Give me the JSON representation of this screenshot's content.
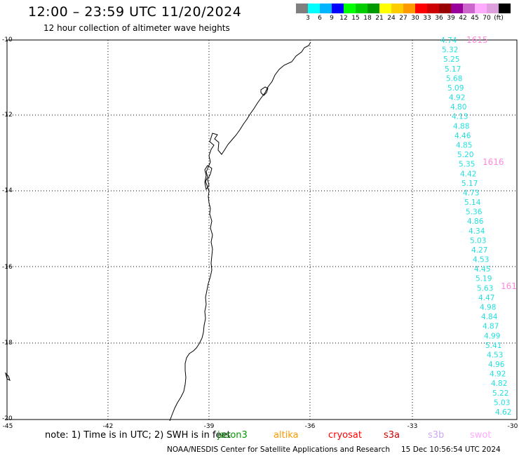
{
  "header": {
    "title": "12:00 – 23:59 UTC 11/20/2024",
    "subtitle": "12 hour collection of altimeter wave heights"
  },
  "color_scale": {
    "colors": [
      "#7f7f7f",
      "#00ffff",
      "#00b4ff",
      "#0000ff",
      "#00ff00",
      "#00cc00",
      "#009900",
      "#ffff00",
      "#ffcc00",
      "#ff9900",
      "#ff0000",
      "#cc0000",
      "#990000",
      "#990099",
      "#cc66cc",
      "#ffaaff",
      "#dda0dd",
      "#000000"
    ],
    "labels": [
      "3",
      "6",
      "9",
      "12",
      "15",
      "18",
      "21",
      "24",
      "27",
      "30",
      "33",
      "36",
      "39",
      "42",
      "45",
      "70",
      "(ft)"
    ]
  },
  "axes": {
    "lat_labels": [
      "-10",
      "-12",
      "-14",
      "-16",
      "-18",
      "-20"
    ],
    "lon_labels": [
      "-45",
      "-42",
      "-39",
      "-36",
      "-33",
      "-30"
    ],
    "lat_range": [
      -20,
      -10
    ],
    "lon_range": [
      -45,
      -30
    ]
  },
  "track": {
    "color": "#22e0e0",
    "values": [
      "4.74",
      "5.32",
      "5.25",
      "5.17",
      "5.68",
      "5.09",
      "4.92",
      "4.80",
      "4.13",
      "4.88",
      "4.46",
      "4.85",
      "5.20",
      "5.35",
      "4.42",
      "5.17",
      "4.73",
      "5.14",
      "5.36",
      "4.86",
      "4.34",
      "5.03",
      "4.27",
      "4.53",
      "4.45",
      "5.19",
      "5.63",
      "4.47",
      "4.98",
      "4.84",
      "4.87",
      "4.99",
      "5.41",
      "4.53",
      "4.96",
      "4.92",
      "4.82",
      "5.22",
      "5.03",
      "4.62"
    ],
    "pass_times": [
      "1615",
      "1616",
      "161"
    ]
  },
  "footer": {
    "note": "note:  1) Time is in UTC; 2) SWH is in feet",
    "satellites": [
      {
        "name": "jason3",
        "color": "#009900"
      },
      {
        "name": "altika",
        "color": "#ff9900"
      },
      {
        "name": "cryosat",
        "color": "#ff0000"
      },
      {
        "name": "s3a",
        "color": "#cc0000"
      },
      {
        "name": "s3b",
        "color": "#ccaaee"
      },
      {
        "name": "swot",
        "color": "#ffaaff"
      }
    ],
    "credit": "NOAA/NESDIS Center for Satellite Applications and Research",
    "timestamp": "15 Dec 10:56:54 UTC 2024"
  }
}
